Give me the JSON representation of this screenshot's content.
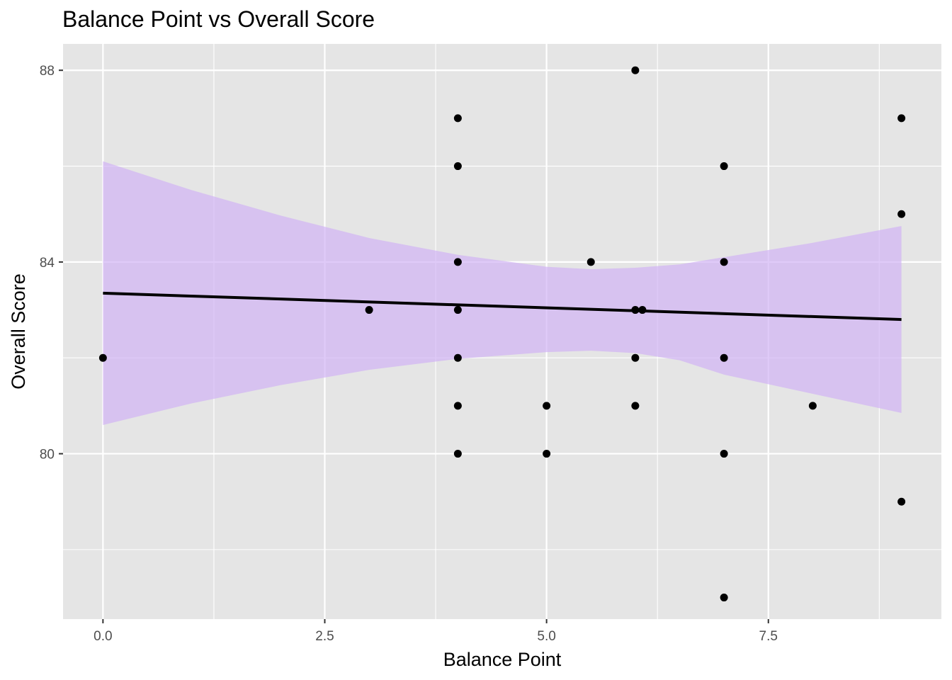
{
  "chart_data": {
    "type": "scatter",
    "title": "Balance Point vs Overall Score",
    "xlabel": "Balance Point",
    "ylabel": "Overall Score",
    "xlim": [
      -0.45,
      9.45
    ],
    "ylim": [
      76.55,
      88.55
    ],
    "x_ticks": [
      0.0,
      2.5,
      5.0,
      7.5
    ],
    "x_tick_labels": [
      "0.0",
      "2.5",
      "5.0",
      "7.5"
    ],
    "y_ticks": [
      80,
      84,
      88
    ],
    "y_tick_labels": [
      "80",
      "84",
      "88"
    ],
    "grid": true,
    "panel_background": "#e5e5e5",
    "grid_color": "#ffffff",
    "point_color": "#000000",
    "points": [
      {
        "x": 0,
        "y": 82
      },
      {
        "x": 3,
        "y": 83
      },
      {
        "x": 4,
        "y": 87
      },
      {
        "x": 4,
        "y": 86
      },
      {
        "x": 4,
        "y": 84
      },
      {
        "x": 4,
        "y": 83
      },
      {
        "x": 4,
        "y": 82
      },
      {
        "x": 4,
        "y": 81
      },
      {
        "x": 4,
        "y": 80
      },
      {
        "x": 5,
        "y": 81
      },
      {
        "x": 5,
        "y": 80
      },
      {
        "x": 5.5,
        "y": 84
      },
      {
        "x": 6,
        "y": 88
      },
      {
        "x": 6,
        "y": 83
      },
      {
        "x": 6.08,
        "y": 83
      },
      {
        "x": 6,
        "y": 82
      },
      {
        "x": 6,
        "y": 81
      },
      {
        "x": 7,
        "y": 86
      },
      {
        "x": 7,
        "y": 84
      },
      {
        "x": 7,
        "y": 82
      },
      {
        "x": 7,
        "y": 80
      },
      {
        "x": 7,
        "y": 77
      },
      {
        "x": 8,
        "y": 81
      },
      {
        "x": 9,
        "y": 87
      },
      {
        "x": 9,
        "y": 85
      },
      {
        "x": 9,
        "y": 79
      }
    ],
    "trend_line": {
      "method": "linear",
      "color": "#000000",
      "x": [
        0,
        9
      ],
      "y": [
        83.35,
        82.8
      ]
    },
    "confidence_band": {
      "fill": "#d2b4f5",
      "opacity": 0.7,
      "x": [
        0,
        1,
        2,
        3,
        4,
        5,
        5.5,
        6,
        6.5,
        7,
        8,
        9
      ],
      "upper": [
        86.1,
        85.5,
        84.97,
        84.5,
        84.15,
        83.9,
        83.85,
        83.88,
        83.95,
        84.1,
        84.4,
        84.75
      ],
      "lower": [
        80.6,
        81.05,
        81.43,
        81.75,
        81.98,
        82.12,
        82.15,
        82.1,
        81.95,
        81.65,
        81.25,
        80.85
      ]
    }
  }
}
